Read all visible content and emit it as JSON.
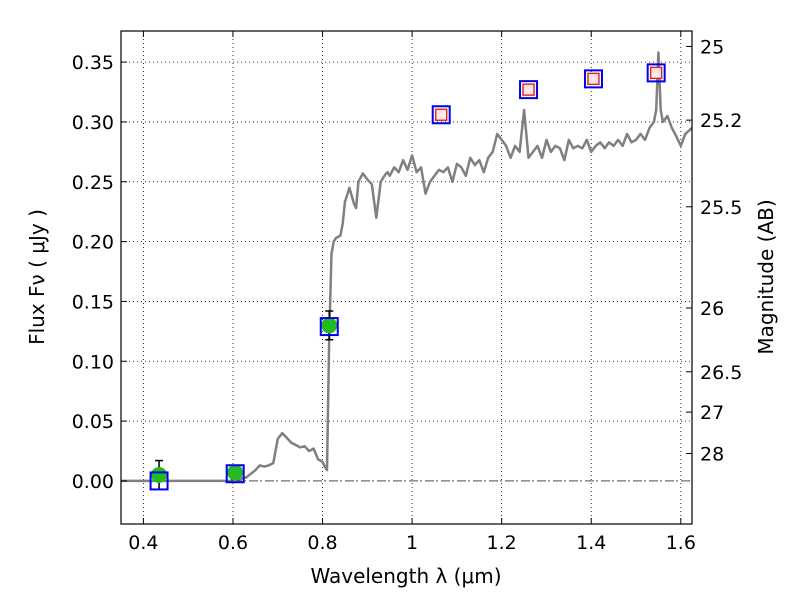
{
  "chart_data": {
    "type": "scatter",
    "xlabel": "Wavelength  λ (μm)",
    "ylabel": "Flux  Fν  ( μJy )",
    "y2label": "Magnitude (AB)",
    "xlim": [
      0.35,
      1.625
    ],
    "ylim": [
      -0.036,
      0.376
    ],
    "grid": true,
    "x_ticks": [
      {
        "v": 0.4,
        "label": "0.4"
      },
      {
        "v": 0.6,
        "label": "0.6"
      },
      {
        "v": 0.8,
        "label": "0.8"
      },
      {
        "v": 1.0,
        "label": "1"
      },
      {
        "v": 1.2,
        "label": "1.2"
      },
      {
        "v": 1.4,
        "label": "1.4"
      },
      {
        "v": 1.6,
        "label": "1.6"
      }
    ],
    "y_ticks": [
      {
        "v": 0.0,
        "label": "0.00"
      },
      {
        "v": 0.05,
        "label": "0.05"
      },
      {
        "v": 0.1,
        "label": "0.10"
      },
      {
        "v": 0.15,
        "label": "0.15"
      },
      {
        "v": 0.2,
        "label": "0.20"
      },
      {
        "v": 0.25,
        "label": "0.25"
      },
      {
        "v": 0.3,
        "label": "0.30"
      },
      {
        "v": 0.35,
        "label": "0.35"
      }
    ],
    "mag_ticks": [
      {
        "v": 0.3631,
        "label": "25"
      },
      {
        "v": 0.3015,
        "label": "25.2"
      },
      {
        "v": 0.2291,
        "label": "25.5"
      },
      {
        "v": 0.1445,
        "label": "26"
      },
      {
        "v": 0.0912,
        "label": "26.5"
      },
      {
        "v": 0.0575,
        "label": "27"
      },
      {
        "v": 0.0229,
        "label": "28"
      }
    ],
    "model_spectrum": {
      "color": "#808080",
      "x": [
        0.35,
        0.6,
        0.63,
        0.64,
        0.65,
        0.66,
        0.67,
        0.68,
        0.69,
        0.7,
        0.71,
        0.72,
        0.73,
        0.74,
        0.75,
        0.76,
        0.77,
        0.78,
        0.79,
        0.8,
        0.805,
        0.81,
        0.815,
        0.82,
        0.825,
        0.83,
        0.84,
        0.845,
        0.85,
        0.86,
        0.87,
        0.875,
        0.88,
        0.89,
        0.9,
        0.91,
        0.92,
        0.93,
        0.94,
        0.945,
        0.95,
        0.96,
        0.97,
        0.98,
        0.99,
        1.0,
        1.01,
        1.02,
        1.03,
        1.04,
        1.05,
        1.06,
        1.07,
        1.08,
        1.09,
        1.1,
        1.11,
        1.12,
        1.13,
        1.14,
        1.15,
        1.16,
        1.17,
        1.18,
        1.19,
        1.2,
        1.21,
        1.22,
        1.23,
        1.24,
        1.25,
        1.26,
        1.27,
        1.28,
        1.29,
        1.3,
        1.31,
        1.32,
        1.33,
        1.34,
        1.35,
        1.36,
        1.37,
        1.38,
        1.39,
        1.4,
        1.41,
        1.42,
        1.43,
        1.44,
        1.45,
        1.46,
        1.47,
        1.48,
        1.49,
        1.5,
        1.51,
        1.52,
        1.53,
        1.54,
        1.545,
        1.55,
        1.555,
        1.56,
        1.57,
        1.58,
        1.59,
        1.6,
        1.61,
        1.625
      ],
      "y": [
        0.0,
        0.0,
        0.003,
        0.006,
        0.009,
        0.013,
        0.012,
        0.013,
        0.015,
        0.035,
        0.04,
        0.036,
        0.032,
        0.03,
        0.028,
        0.029,
        0.025,
        0.027,
        0.018,
        0.016,
        0.012,
        0.009,
        0.12,
        0.19,
        0.2,
        0.203,
        0.205,
        0.215,
        0.233,
        0.245,
        0.232,
        0.228,
        0.25,
        0.257,
        0.252,
        0.248,
        0.22,
        0.25,
        0.256,
        0.258,
        0.255,
        0.262,
        0.258,
        0.268,
        0.26,
        0.272,
        0.258,
        0.262,
        0.24,
        0.25,
        0.255,
        0.26,
        0.258,
        0.262,
        0.25,
        0.265,
        0.262,
        0.255,
        0.27,
        0.264,
        0.268,
        0.258,
        0.27,
        0.275,
        0.29,
        0.285,
        0.28,
        0.27,
        0.28,
        0.275,
        0.31,
        0.27,
        0.275,
        0.28,
        0.27,
        0.285,
        0.275,
        0.28,
        0.278,
        0.268,
        0.285,
        0.278,
        0.28,
        0.278,
        0.285,
        0.275,
        0.28,
        0.283,
        0.278,
        0.283,
        0.28,
        0.285,
        0.28,
        0.29,
        0.283,
        0.285,
        0.29,
        0.285,
        0.295,
        0.3,
        0.31,
        0.358,
        0.31,
        0.3,
        0.305,
        0.295,
        0.288,
        0.28,
        0.29,
        0.295
      ]
    },
    "series": [
      {
        "marker": "circle",
        "color": "#22bb22",
        "points": [
          {
            "x": 0.435,
            "y": 0.005,
            "err": 0.012
          },
          {
            "x": 0.605,
            "y": 0.007,
            "err": 0.006
          },
          {
            "x": 0.815,
            "y": 0.13,
            "err": 0.012
          }
        ]
      },
      {
        "marker": "open-square",
        "color": "#0000ee",
        "points": [
          {
            "x": 0.435,
            "y": 0.0
          },
          {
            "x": 0.605,
            "y": 0.006
          },
          {
            "x": 0.815,
            "y": 0.129
          },
          {
            "x": 1.065,
            "y": 0.306
          },
          {
            "x": 1.26,
            "y": 0.327
          },
          {
            "x": 1.405,
            "y": 0.336
          },
          {
            "x": 1.545,
            "y": 0.341
          }
        ]
      },
      {
        "marker": "small-square",
        "color": "#dd2222",
        "points": [
          {
            "x": 1.065,
            "y": 0.306
          },
          {
            "x": 1.26,
            "y": 0.327
          },
          {
            "x": 1.405,
            "y": 0.336
          },
          {
            "x": 1.545,
            "y": 0.341
          }
        ]
      }
    ]
  }
}
